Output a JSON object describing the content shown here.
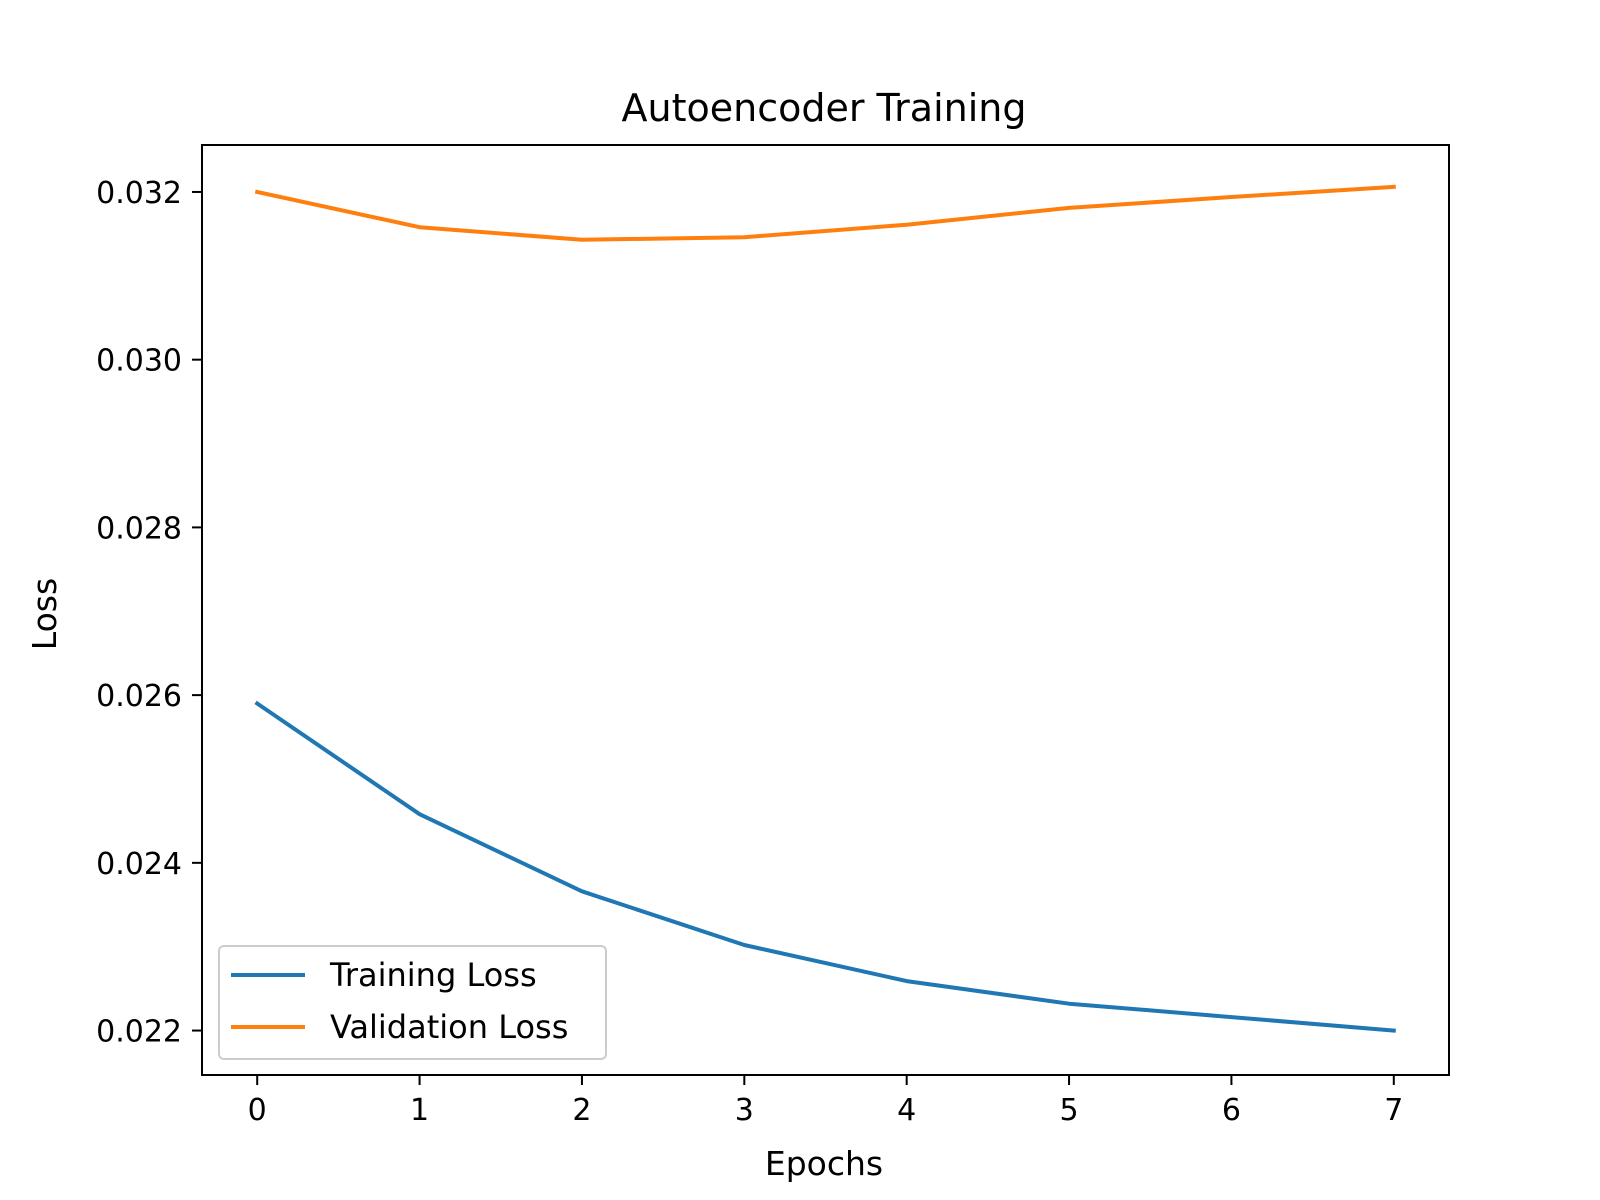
{
  "chart_data": {
    "type": "line",
    "title": "Autoencoder Training",
    "xlabel": "Epochs",
    "ylabel": "Loss",
    "x": [
      0,
      1,
      2,
      3,
      4,
      5,
      6,
      7
    ],
    "xlim": [
      -0.34,
      7.34
    ],
    "ylim": [
      0.02147,
      0.03256
    ],
    "x_ticks": [
      "0",
      "1",
      "2",
      "3",
      "4",
      "5",
      "6",
      "7"
    ],
    "y_ticks": [
      {
        "value": 0.022,
        "label": "0.022"
      },
      {
        "value": 0.024,
        "label": "0.024"
      },
      {
        "value": 0.026,
        "label": "0.026"
      },
      {
        "value": 0.028,
        "label": "0.028"
      },
      {
        "value": 0.03,
        "label": "0.030"
      },
      {
        "value": 0.032,
        "label": "0.032"
      }
    ],
    "grid": false,
    "legend_position": "lower-left",
    "series": [
      {
        "name": "Training Loss",
        "color": "#1f77b4",
        "values": [
          0.0259,
          0.02458,
          0.02366,
          0.02302,
          0.02259,
          0.02232,
          0.02216,
          0.022
        ]
      },
      {
        "name": "Validation Loss",
        "color": "#ff7f0e",
        "values": [
          0.032,
          0.03158,
          0.03143,
          0.03146,
          0.03161,
          0.03181,
          0.03194,
          0.03206
        ]
      }
    ]
  }
}
